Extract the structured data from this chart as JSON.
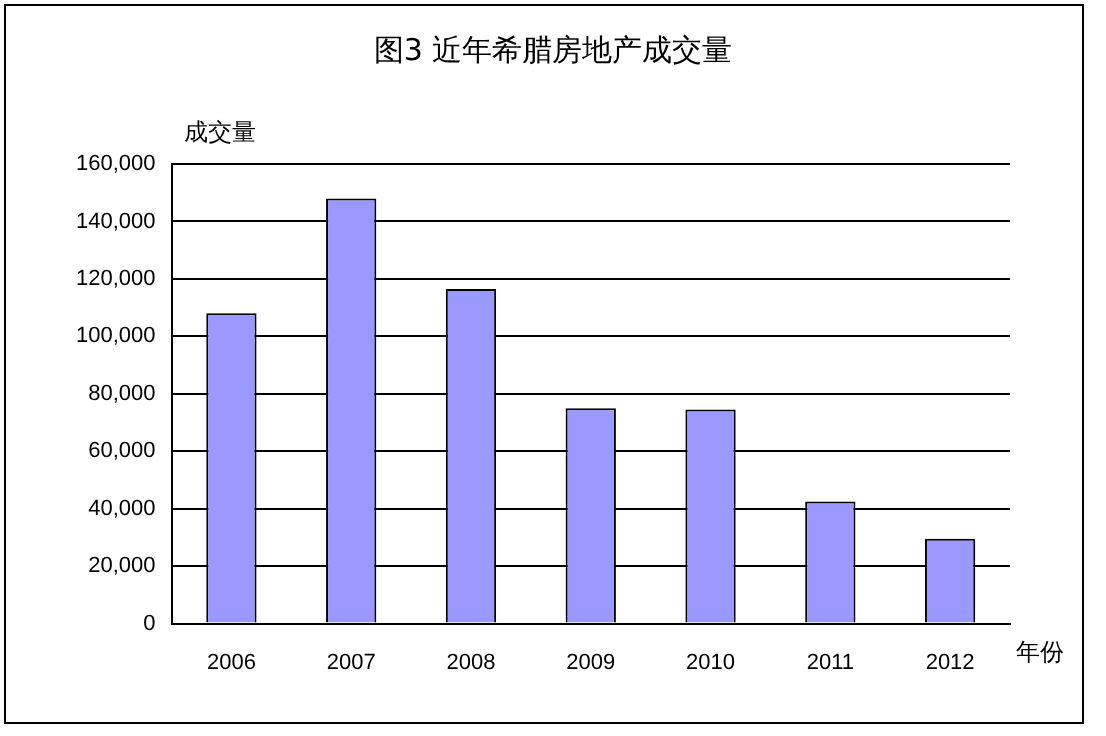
{
  "chart_data": {
    "type": "bar",
    "title": "图3  近年希腊房地产成交量",
    "ylabel": "成交量",
    "xlabel": "年份",
    "categories": [
      "2006",
      "2007",
      "2008",
      "2009",
      "2010",
      "2011",
      "2012"
    ],
    "values": [
      108000,
      148000,
      116500,
      75000,
      74500,
      42500,
      29500
    ],
    "color": "#9999ff",
    "ylim": [
      0,
      160000
    ],
    "yticks": [
      0,
      {
        "value": 20000,
        "label": "20,000"
      },
      {
        "value": 40000,
        "label": "40,000"
      },
      {
        "value": 60000,
        "label": "60,000"
      },
      {
        "value": 80000,
        "label": "80,000"
      },
      {
        "value": 100000,
        "label": "100,000"
      },
      {
        "value": 120000,
        "label": "120,000"
      },
      {
        "value": 140000,
        "label": "140,000"
      },
      {
        "value": 160000,
        "label": "160,000"
      }
    ],
    "grid": "y",
    "legend": false
  }
}
